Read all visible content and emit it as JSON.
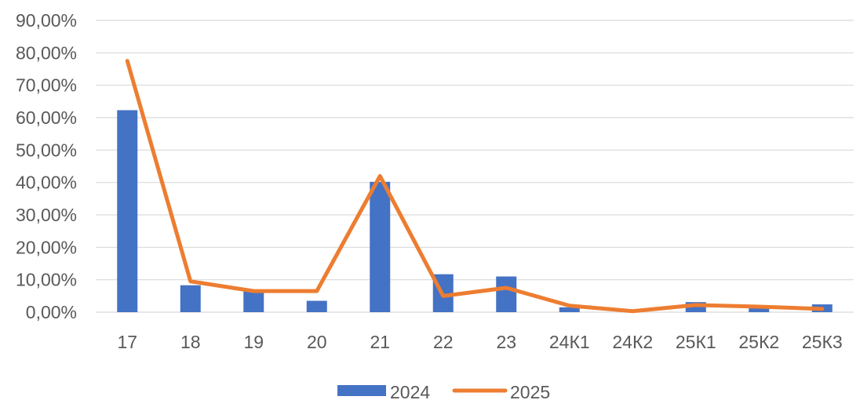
{
  "chart_data": {
    "type": "bar",
    "categories": [
      "17",
      "18",
      "19",
      "20",
      "21",
      "22",
      "23",
      "24К1",
      "24К2",
      "25К1",
      "25К2",
      "25К3"
    ],
    "series": [
      {
        "name": "2024",
        "render": "bar",
        "color": "#4472C4",
        "values": [
          0.623,
          0.083,
          0.065,
          0.035,
          0.402,
          0.117,
          0.11,
          0.015,
          0.0,
          0.031,
          0.012,
          0.024
        ]
      },
      {
        "name": "2025",
        "render": "line",
        "color": "#ED7D31",
        "values": [
          0.775,
          0.095,
          0.065,
          0.065,
          0.42,
          0.05,
          0.075,
          0.02,
          0.003,
          0.022,
          0.017,
          0.01
        ]
      }
    ],
    "y_ticks": [
      "0,00%",
      "10,00%",
      "20,00%",
      "30,00%",
      "40,00%",
      "50,00%",
      "60,00%",
      "70,00%",
      "80,00%",
      "90,00%"
    ],
    "ylim": [
      0,
      0.9
    ],
    "y_format": "percent",
    "grid": true,
    "legend": "bottom-center",
    "title": "",
    "xlabel": "",
    "ylabel": ""
  }
}
